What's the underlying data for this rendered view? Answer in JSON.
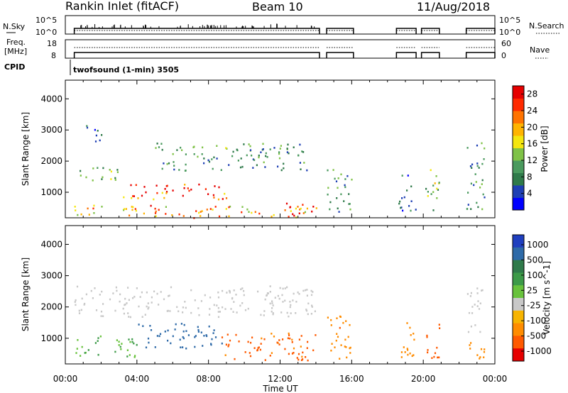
{
  "header": {
    "station": "Rankin Inlet (fitACF)",
    "beam": "Beam 10",
    "date": "11/Aug/2018"
  },
  "side_labels": {
    "nsky": "N.Sky",
    "nsearch": "N.Search",
    "freq_line1": "Freq.",
    "freq_line2": "[MHz]",
    "nave": "Nave",
    "cpid": "CPID"
  },
  "noise_axis": {
    "top_label": "10^5",
    "bottom_label": "10^0",
    "right_top": "10^5",
    "right_bottom": "10^0"
  },
  "freq_axis": {
    "left_top": "18",
    "left_bottom": "8",
    "right_top": "60",
    "right_bottom": "0"
  },
  "cpid_text": "twofsound (1-min) 3505",
  "time_axis": {
    "title": "Time UT",
    "ticks": [
      "00:00",
      "04:00",
      "08:00",
      "12:00",
      "16:00",
      "20:00",
      "00:00"
    ],
    "tick_hours": [
      0,
      4,
      8,
      12,
      16,
      20,
      24
    ]
  },
  "colors": {
    "ink": "#000000",
    "grid": "#000000"
  },
  "chart_data": [
    {
      "type": "heatmap",
      "title": "",
      "xlabel": "",
      "ylabel": "Slant Range [km]",
      "xlim": [
        0,
        24
      ],
      "ylim": [
        180,
        4600
      ],
      "yticks": [
        "1000",
        "2000",
        "3000",
        "4000"
      ],
      "ytick_values": [
        1000,
        2000,
        3000,
        4000
      ],
      "colorbar": {
        "label": "Power [dB]",
        "ticks": [
          "4",
          "8",
          "12",
          "16",
          "20",
          "24",
          "28"
        ],
        "tick_values": [
          4,
          8,
          12,
          16,
          20,
          24,
          28
        ],
        "range": [
          0,
          30
        ],
        "stops": [
          "#0000ff",
          "#1e3fb4",
          "#2f7a4a",
          "#4a9a5e",
          "#7fc247",
          "#f4e60f",
          "#ffb400",
          "#ff7300",
          "#ff2a00",
          "#e60000"
        ]
      },
      "data_gaps_hours": [
        [
          14.2,
          14.6
        ],
        [
          16.1,
          18.5
        ],
        [
          20.9,
          22.4
        ]
      ],
      "regions": [
        {
          "t": [
            0.5,
            14.1
          ],
          "r": [
            200,
            600
          ],
          "value": 20
        },
        {
          "t": [
            3.0,
            9.0
          ],
          "r": [
            800,
            1300
          ],
          "value": 25
        },
        {
          "t": [
            0.5,
            3.0
          ],
          "r": [
            1400,
            1900
          ],
          "value": 12
        },
        {
          "t": [
            5.0,
            13.5
          ],
          "r": [
            1700,
            2600
          ],
          "value": 10
        },
        {
          "t": [
            1.0,
            2.0
          ],
          "r": [
            2600,
            3200
          ],
          "value": 6
        },
        {
          "t": [
            12.3,
            14.0
          ],
          "r": [
            300,
            700
          ],
          "value": 26
        },
        {
          "t": [
            14.6,
            16.0
          ],
          "r": [
            400,
            1800
          ],
          "value": 10
        },
        {
          "t": [
            18.6,
            19.6
          ],
          "r": [
            400,
            1600
          ],
          "value": 6
        },
        {
          "t": [
            20.1,
            20.9
          ],
          "r": [
            300,
            1800
          ],
          "value": 14
        },
        {
          "t": [
            22.4,
            23.4
          ],
          "r": [
            400,
            2700
          ],
          "value": 9
        }
      ]
    },
    {
      "type": "heatmap",
      "title": "",
      "xlabel": "Time UT",
      "ylabel": "Slant Range [km]",
      "xlim": [
        0,
        24
      ],
      "ylim": [
        180,
        4600
      ],
      "yticks": [
        "1000",
        "2000",
        "3000",
        "4000"
      ],
      "ytick_values": [
        1000,
        2000,
        3000,
        4000
      ],
      "colorbar": {
        "label": "Velocity [m s^-1]",
        "ticks": [
          "1000",
          "500",
          "100",
          "25",
          "-25",
          "-100",
          "-500",
          "-1000"
        ],
        "tick_values": [
          1000,
          500,
          100,
          25,
          -25,
          -100,
          -500,
          -1000
        ],
        "stops": [
          "#1f3fbf",
          "#2e6aa8",
          "#2f7a4a",
          "#3c9a48",
          "#68c23c",
          "#c8c8c8",
          "#f7b400",
          "#ff8c00",
          "#ff5a00",
          "#e60000"
        ]
      },
      "regions": [
        {
          "t": [
            0.5,
            4.0
          ],
          "r": [
            400,
            1100
          ],
          "value": 100
        },
        {
          "t": [
            4.0,
            8.8
          ],
          "r": [
            700,
            1500
          ],
          "value": 700
        },
        {
          "t": [
            0.5,
            14.0
          ],
          "r": [
            1700,
            2700
          ],
          "value": 0
        },
        {
          "t": [
            8.5,
            14.0
          ],
          "r": [
            300,
            1200
          ],
          "value": -300
        },
        {
          "t": [
            14.6,
            16.0
          ],
          "r": [
            300,
            1800
          ],
          "value": -200
        },
        {
          "t": [
            18.6,
            19.6
          ],
          "r": [
            400,
            1600
          ],
          "value": -150
        },
        {
          "t": [
            20.1,
            20.9
          ],
          "r": [
            300,
            1500
          ],
          "value": -400
        },
        {
          "t": [
            22.4,
            23.4
          ],
          "r": [
            1200,
            2700
          ],
          "value": 0
        },
        {
          "t": [
            22.4,
            23.4
          ],
          "r": [
            300,
            1100
          ],
          "value": -200
        }
      ]
    }
  ]
}
